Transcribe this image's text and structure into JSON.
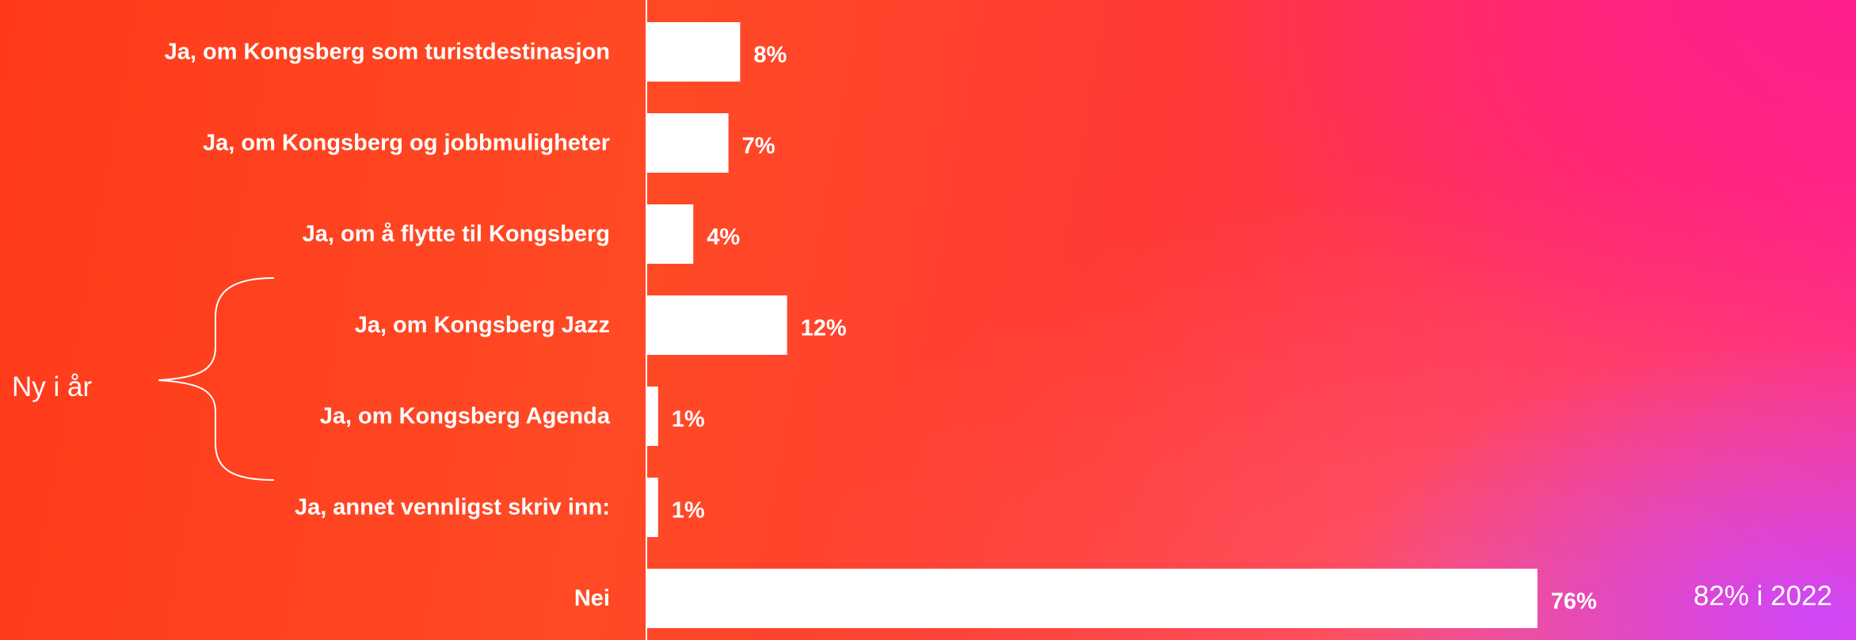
{
  "chart_data": {
    "type": "bar",
    "orientation": "horizontal",
    "categories": [
      "Ja, om Kongsberg som turistdestinasjon",
      "Ja, om Kongsberg og jobbmuligheter",
      "Ja, om å flytte til Kongsberg",
      "Ja, om Kongsberg Jazz",
      "Ja, om Kongsberg Agenda",
      "Ja, annet vennligst skriv inn:",
      "Nei"
    ],
    "values": [
      8,
      7,
      4,
      12,
      1,
      1,
      76
    ],
    "value_labels": [
      "8%",
      "7%",
      "4%",
      "12%",
      "1%",
      "1%",
      "76%"
    ],
    "title": "",
    "xlabel": "",
    "ylabel": "",
    "xlim": [
      0,
      100
    ],
    "grid": false,
    "legend": "none",
    "bar_color": "#ffffff",
    "annotations": {
      "bracket_label": "Ny i år",
      "bracket_categories": [
        "Ja, om Kongsberg Jazz",
        "Ja, om Kongsberg Agenda"
      ],
      "comparison_note": "82% i 2022"
    }
  },
  "colors": {
    "text": "#ffffff",
    "bar": "#ffffff",
    "background_start": "#ff3a1a",
    "background_end": "#ff2c8a",
    "background_corner": "#cd46ff"
  }
}
